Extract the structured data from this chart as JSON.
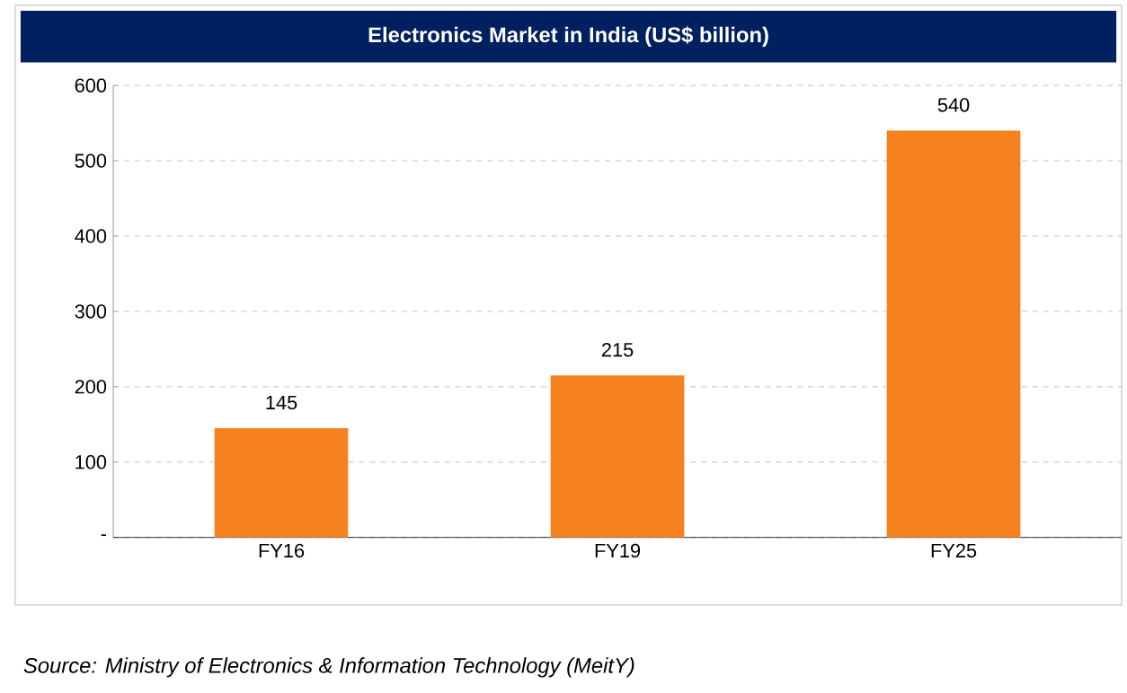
{
  "chart_data": {
    "type": "bar",
    "title": "Electronics Market in India (US$ billion)",
    "categories": [
      "FY16",
      "FY19",
      "FY25"
    ],
    "values": [
      145,
      215,
      540
    ],
    "color": "#f5821f",
    "ylim": [
      0,
      600
    ],
    "yticks": [
      {
        "value": 0,
        "label": "-"
      },
      100,
      200,
      300,
      400,
      500,
      600
    ],
    "grid": "y",
    "data_labels": true,
    "annotations": [
      "Source: Ministry of Electronics & Information Technology (MeitY)"
    ]
  }
}
